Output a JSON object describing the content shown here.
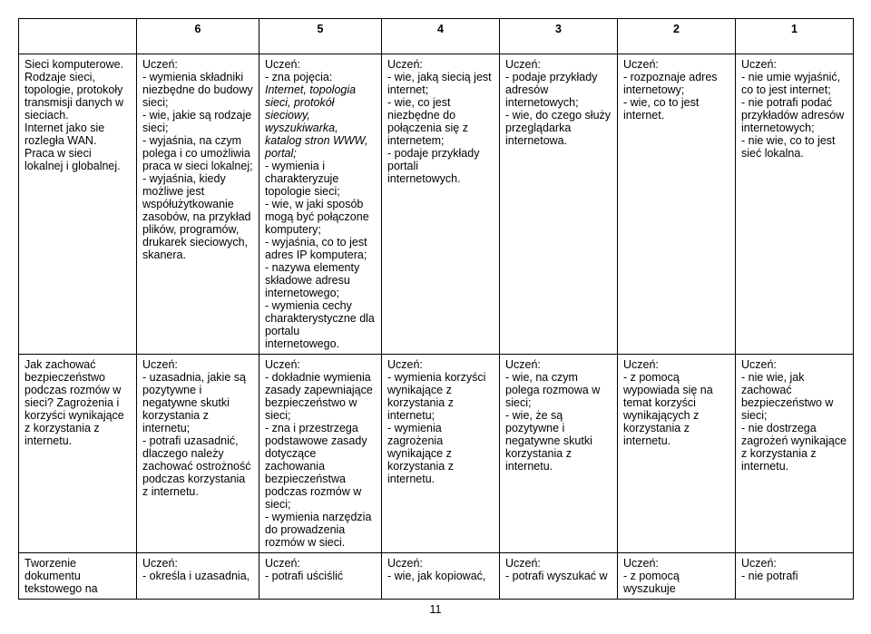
{
  "header": {
    "blank": "",
    "c6": "6",
    "c5": "5",
    "c4": "4",
    "c3": "3",
    "c2": "2",
    "c1": "1"
  },
  "row1": {
    "topic": "Sieci komputerowe. Rodzaje sieci, topologie, protokoły transmisji danych w sieciach.\nInternet jako sie rozległa WAN.\nPraca w sieci lokalnej i globalnej.",
    "c6": "Uczeń:\n- wymienia składniki niezbędne do budowy sieci;\n- wie, jakie są rodzaje sieci;\n- wyjaśnia, na czym polega i co umożliwia praca w sieci lokalnej;\n- wyjaśnia, kiedy możliwe jest współużytkowanie zasobów, na przykład plików, programów, drukarek sieciowych, skanera.",
    "c5_pre": "Uczeń:\n- zna pojęcia: ",
    "c5_italic": "Internet, topologia sieci, protokół sieciowy, wyszukiwarka, katalog stron WWW, portal;",
    "c5_post": "\n- wymienia i charakteryzuje topologie sieci;\n- wie, w jaki sposób mogą być połączone komputery;\n- wyjaśnia, co to jest adres IP komputera;\n - nazywa elementy składowe adresu internetowego;\n- wymienia cechy charakterystyczne dla portalu internetowego.",
    "c4": "Uczeń:\n- wie, jaką siecią jest internet;\n- wie, co jest niezbędne do połączenia się z internetem;\n- podaje przykłady portali internetowych.",
    "c3": "Uczeń:\n- podaje przykłady adresów internetowych;\n- wie, do czego służy przeglądarka internetowa.",
    "c2": "Uczeń:\n- rozpoznaje adres internetowy;\n- wie, co to jest internet.",
    "c1": "Uczeń:\n- nie umie wyjaśnić, co to jest internet;\n- nie potrafi podać przykładów adresów internetowych;\n- nie wie, co to jest sieć lokalna."
  },
  "row2": {
    "topic": "Jak zachować bezpieczeństwo podczas rozmów w sieci? Zagrożenia i korzyści wynikające z korzystania z internetu.",
    "c6": "Uczeń:\n- uzasadnia, jakie są pozytywne i negatywne skutki korzystania z internetu;\n- potrafi uzasadnić, dlaczego należy zachować ostrożność podczas korzystania z internetu.",
    "c5": "Uczeń:\n- dokładnie wymienia zasady zapewniające bezpieczeństwo w sieci;\n- zna i przestrzega podstawowe zasady dotyczące zachowania bezpieczeństwa podczas rozmów w sieci;\n- wymienia narzędzia do prowadzenia rozmów w sieci.",
    "c4": "Uczeń:\n- wymienia korzyści wynikające z korzystania z internetu;\n- wymienia zagrożenia wynikające z korzystania z internetu.",
    "c3": "Uczeń:\n- wie, na czym polega rozmowa w sieci;\n- wie, że są pozytywne i negatywne skutki korzystania z internetu.",
    "c2": "Uczeń:\n- z pomocą wypowiada się na temat korzyści wynikających z korzystania z internetu.",
    "c1": "Uczeń:\n- nie wie, jak zachować bezpieczeństwo w sieci;\n- nie dostrzega zagrożeń wynikające z korzystania z internetu."
  },
  "row3": {
    "topic": "Tworzenie dokumentu tekstowego na",
    "c6": "Uczeń:\n- określa i uzasadnia,",
    "c5": "Uczeń:\n- potrafi uściślić",
    "c4": "Uczeń:\n- wie, jak kopiować,",
    "c3": "Uczeń:\n- potrafi wyszukać w",
    "c2": "Uczeń:\n- z pomocą wyszukuje",
    "c1": "Uczeń:\n- nie potrafi"
  },
  "page": "11"
}
